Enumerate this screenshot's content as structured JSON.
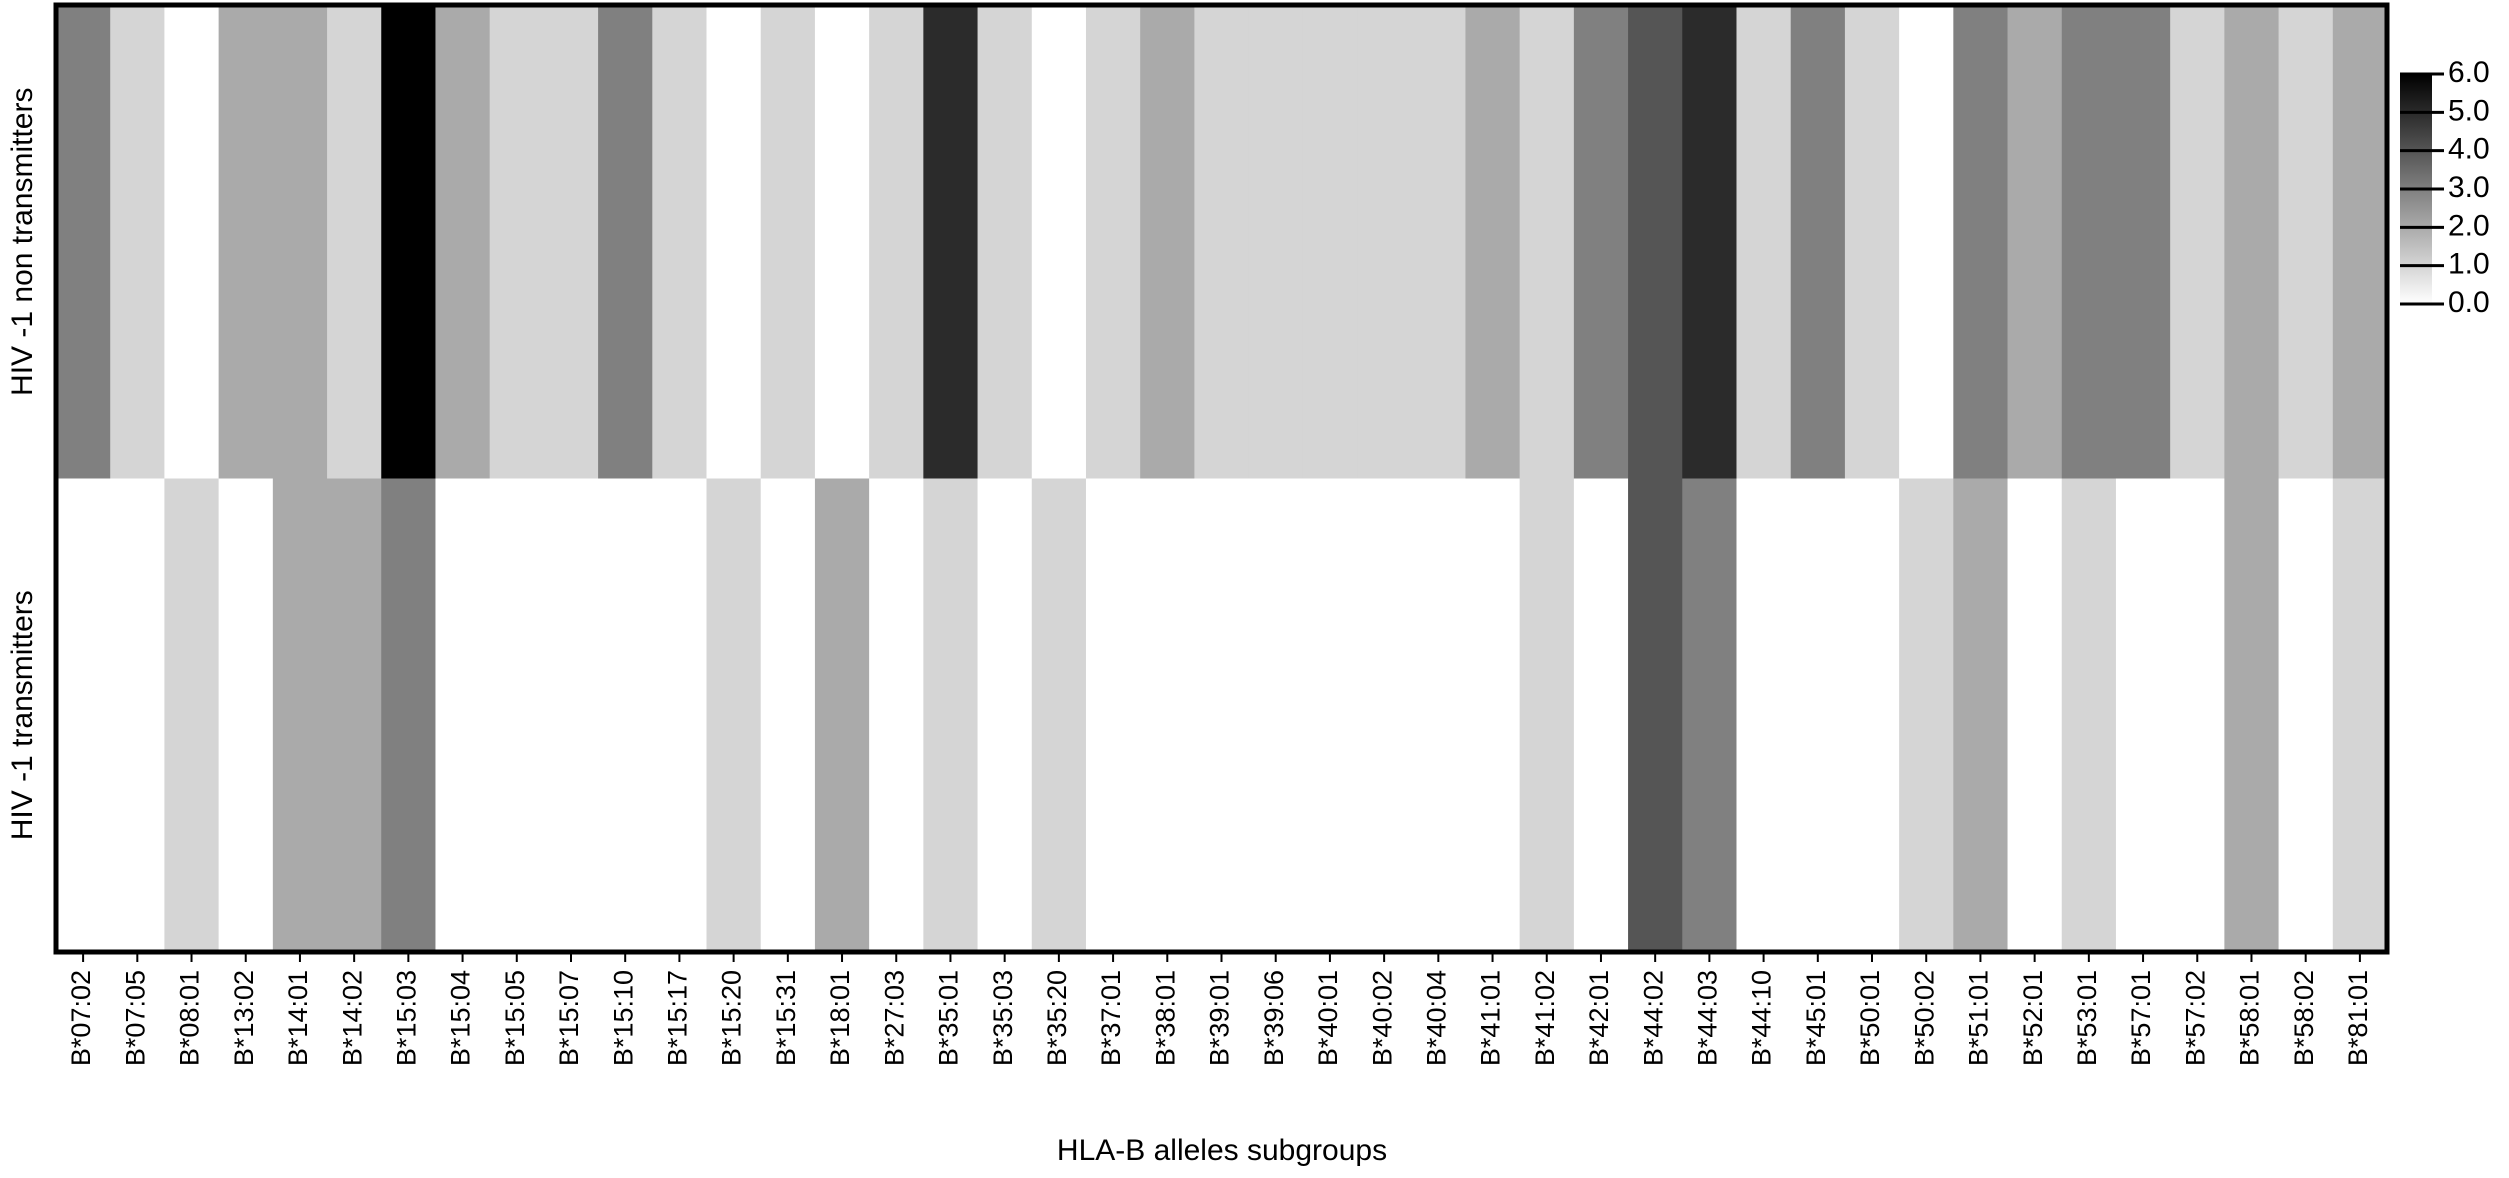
{
  "chart_data": {
    "type": "heatmap",
    "xlabel": "HLA-B alleles subgroups",
    "categories": [
      "B*07:02",
      "B*07:05",
      "B*08:01",
      "B*13:02",
      "B*14:01",
      "B*14:02",
      "B*15:03",
      "B*15:04",
      "B*15:05",
      "B*15:07",
      "B*15:10",
      "B*15:17",
      "B*15:20",
      "B*15:31",
      "B*18:01",
      "B*27:03",
      "B*35:01",
      "B*35:03",
      "B*35:20",
      "B*37:01",
      "B*38:01",
      "B*39:01",
      "B*39:06",
      "B*40:01",
      "B*40:02",
      "B*40:04",
      "B*41:01",
      "B*41:02",
      "B*42:01",
      "B*44:02",
      "B*44:03",
      "B*44:10",
      "B*45:01",
      "B*50:01",
      "B*50:02",
      "B*51:01",
      "B*52:01",
      "B*53:01",
      "B*57:01",
      "B*57:02",
      "B*58:01",
      "B*58:02",
      "B*81:01"
    ],
    "rows": [
      "HIV -1 non transmitters",
      "HIV -1 transmitters"
    ],
    "values": [
      [
        3,
        1,
        0,
        2,
        2,
        1,
        6,
        2,
        1,
        1,
        3,
        1,
        0,
        1,
        0,
        1,
        5,
        1,
        0,
        1,
        2,
        1,
        1,
        1,
        1,
        1,
        2,
        1,
        3,
        4,
        5,
        1,
        3,
        1,
        0,
        3,
        2,
        3,
        3,
        1,
        2,
        1,
        2
      ],
      [
        0,
        0,
        1,
        0,
        2,
        2,
        3,
        0,
        0,
        0,
        0,
        0,
        1,
        0,
        2,
        0,
        1,
        0,
        1,
        0,
        0,
        0,
        0,
        0,
        0,
        0,
        0,
        1,
        0,
        4,
        3,
        0,
        0,
        0,
        1,
        2,
        0,
        1,
        0,
        0,
        2,
        0,
        1
      ]
    ],
    "colorscale": [
      "#ffffff",
      "#000000"
    ],
    "zlim": [
      0,
      6
    ],
    "zticks": [
      {
        "value": 0,
        "label": "0.0"
      },
      {
        "value": 1,
        "label": "1.0"
      },
      {
        "value": 2,
        "label": "2.0"
      },
      {
        "value": 3,
        "label": "3.0"
      },
      {
        "value": 4,
        "label": "4.0"
      },
      {
        "value": 5,
        "label": "5.0"
      },
      {
        "value": 6,
        "label": "6.0"
      }
    ]
  }
}
